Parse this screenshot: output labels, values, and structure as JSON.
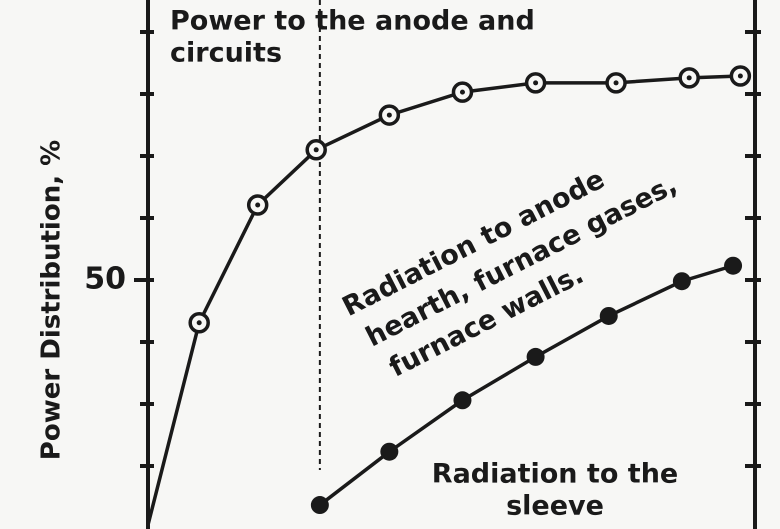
{
  "chart_data": {
    "type": "line",
    "y_label": "Power Distribution, %",
    "ylim": [
      10,
      95
    ],
    "yticks": [
      50
    ],
    "yminor_ticks": [
      20,
      30,
      40,
      60,
      70,
      80,
      90
    ],
    "xlim": [
      0,
      8.3
    ],
    "marker_x": 2.35,
    "series": [
      {
        "name": "Power to the anode and circuits",
        "marker": "open-dot",
        "color": "#1a1a1a",
        "x": [
          0,
          0.7,
          1.5,
          2.3,
          3.3,
          4.3,
          5.3,
          6.4,
          7.4,
          8.1
        ],
        "values": [
          10.5,
          43.1,
          62.1,
          71.0,
          76.6,
          80.3,
          81.8,
          81.8,
          82.6,
          82.9
        ]
      },
      {
        "name": "Radiation to the sleeve",
        "marker": "filled",
        "color": "#1a1a1a",
        "x": [
          2.35,
          3.3,
          4.3,
          5.3,
          6.3,
          7.3,
          8.0
        ],
        "values": [
          13.7,
          22.3,
          30.6,
          37.6,
          44.2,
          49.8,
          52.3
        ]
      }
    ],
    "annotations": [
      [
        "Power to the anode and",
        "circuits"
      ],
      [
        "Radiation to anode",
        "hearth, furnace gases,",
        "furnace walls."
      ],
      [
        "Radiation to the",
        "sleeve"
      ]
    ]
  }
}
